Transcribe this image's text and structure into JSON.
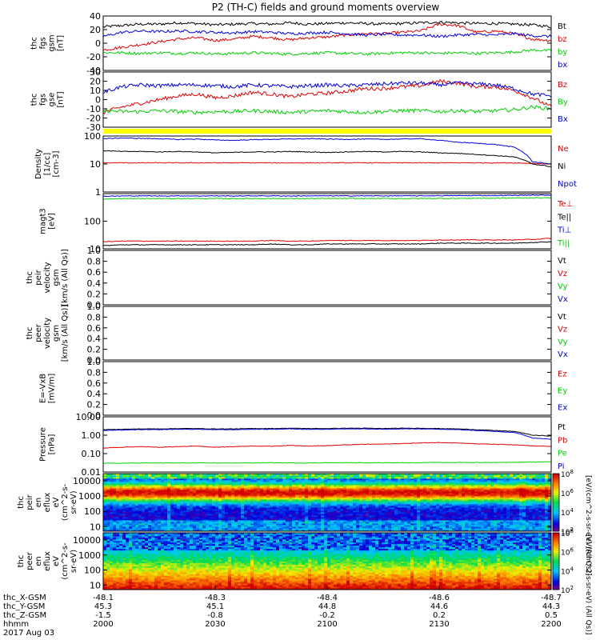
{
  "title": "P2 (TH-C) fields and ground moments overview",
  "colors": {
    "black": "#000000",
    "red": "#e00000",
    "green": "#00d000",
    "blue": "#0000e0",
    "yellow": "#ffff00",
    "bg": "#ffffff"
  },
  "chart_data": [
    {
      "type": "line",
      "name": "fgs_gsm",
      "ylabel": [
        "thc",
        "fgs",
        "gsm",
        "[nT]"
      ],
      "ylim": [
        -40,
        40
      ],
      "yticks": [
        -40,
        -20,
        0,
        20,
        40
      ],
      "yticklabels": [
        "-40",
        "-20",
        "0",
        "20",
        "40"
      ],
      "series": [
        {
          "name": "Bt",
          "color": "#000000",
          "values": [
            24,
            26,
            28,
            28,
            30,
            29,
            27,
            28,
            29,
            28,
            30,
            28,
            29,
            30,
            29,
            28,
            29,
            30,
            31,
            30,
            29,
            29,
            28,
            27,
            24
          ]
        },
        {
          "name": "bz",
          "color": "#e00000",
          "values": [
            -10,
            -6,
            -2,
            2,
            6,
            8,
            4,
            6,
            10,
            8,
            5,
            8,
            9,
            12,
            14,
            14,
            16,
            18,
            28,
            26,
            16,
            18,
            14,
            6,
            4
          ]
        },
        {
          "name": "by",
          "color": "#00d000",
          "values": [
            -14,
            -14,
            -15,
            -14,
            -15,
            -14,
            -16,
            -15,
            -14,
            -15,
            -16,
            -15,
            -14,
            -15,
            -16,
            -15,
            -14,
            -14,
            -15,
            -14,
            -15,
            -14,
            -13,
            -10,
            -11
          ]
        },
        {
          "name": "bx",
          "color": "#0000e0",
          "values": [
            10,
            16,
            18,
            17,
            18,
            17,
            16,
            15,
            17,
            16,
            14,
            15,
            16,
            14,
            12,
            13,
            12,
            12,
            10,
            12,
            13,
            12,
            14,
            11,
            10
          ]
        }
      ]
    },
    {
      "type": "line",
      "name": "fgs_gse",
      "ylabel": [
        "thc",
        "fgs",
        "gse",
        "[nT]"
      ],
      "ylim": [
        -30,
        30
      ],
      "yticks": [
        -30,
        -20,
        -10,
        0,
        10,
        20,
        30
      ],
      "yticklabels": [
        "-30",
        "-20",
        "-10",
        "0",
        "10",
        "20",
        "30"
      ],
      "series": [
        {
          "name": "Bz",
          "color": "#e00000",
          "values": [
            -14,
            -8,
            -4,
            0,
            4,
            6,
            2,
            4,
            8,
            6,
            3,
            6,
            7,
            9,
            12,
            12,
            14,
            15,
            20,
            18,
            14,
            14,
            10,
            2,
            -8
          ]
        },
        {
          "name": "By",
          "color": "#00d000",
          "values": [
            -12,
            -13,
            -13,
            -12,
            -13,
            -14,
            -13,
            -13,
            -12,
            -13,
            -14,
            -13,
            -12,
            -13,
            -14,
            -13,
            -12,
            -12,
            -13,
            -12,
            -13,
            -12,
            -11,
            -8,
            -10
          ]
        },
        {
          "name": "Bx",
          "color": "#0000e0",
          "values": [
            8,
            14,
            16,
            15,
            16,
            16,
            15,
            14,
            16,
            15,
            14,
            15,
            16,
            15,
            16,
            17,
            18,
            18,
            16,
            18,
            17,
            16,
            12,
            6,
            4
          ]
        }
      ]
    },
    {
      "type": "line",
      "name": "density",
      "ylabel": [
        "Density",
        "[1/cc]",
        "[cm-3]"
      ],
      "scale": "log",
      "ylim": [
        1,
        100
      ],
      "yticks": [
        1,
        10,
        100
      ],
      "yticklabels": [
        "1",
        "10",
        "100"
      ],
      "series": [
        {
          "name": "Ne",
          "color": "#e00000",
          "values": [
            11,
            11,
            11,
            11,
            11,
            11,
            11,
            11,
            11,
            11,
            11,
            11,
            11,
            11,
            11,
            11,
            11,
            11,
            11,
            11,
            11,
            11,
            11,
            10.5,
            10
          ]
        },
        {
          "name": "Ni",
          "color": "#000000",
          "values": [
            30,
            28,
            28,
            27,
            28,
            27,
            25,
            26,
            27,
            27,
            28,
            27,
            26,
            27,
            28,
            27,
            28,
            27,
            25,
            24,
            22,
            20,
            18,
            10,
            8
          ]
        },
        {
          "name": "Npot",
          "color": "#0000e0",
          "values": [
            80,
            85,
            82,
            80,
            75,
            78,
            72,
            70,
            74,
            76,
            78,
            80,
            78,
            76,
            78,
            76,
            78,
            80,
            70,
            60,
            55,
            50,
            40,
            12,
            10
          ]
        }
      ]
    },
    {
      "type": "line",
      "name": "moments_t3",
      "ylabel": [
        "magt3",
        "[eV]"
      ],
      "scale": "log",
      "ylim": [
        10,
        1000
      ],
      "yticks": [
        10,
        100
      ],
      "yticklabels": [
        "10",
        "100"
      ],
      "series": [
        {
          "name": "Te⊥",
          "color": "#e00000",
          "values": [
            18,
            19,
            19,
            19,
            19,
            19,
            19,
            19,
            19,
            20,
            19,
            19,
            20,
            20,
            20,
            20,
            20,
            20,
            21,
            21,
            21,
            21,
            21,
            22,
            24
          ]
        },
        {
          "name": "Te||",
          "color": "#000000",
          "values": [
            13,
            14,
            14,
            14,
            14,
            14,
            14,
            14,
            14,
            15,
            14,
            14,
            15,
            15,
            15,
            15,
            15,
            15,
            16,
            16,
            16,
            16,
            16,
            17,
            18
          ]
        },
        {
          "name": "Ti⊥",
          "color": "#0000e0",
          "values": [
            800,
            820,
            830,
            820,
            830,
            820,
            830,
            820,
            830,
            830,
            820,
            830,
            830,
            830,
            830,
            830,
            830,
            830,
            840,
            840,
            850,
            850,
            860,
            880,
            880
          ]
        },
        {
          "name": "Ti||",
          "color": "#00d000",
          "values": [
            640,
            660,
            660,
            660,
            660,
            660,
            660,
            660,
            660,
            665,
            660,
            660,
            665,
            665,
            665,
            665,
            665,
            665,
            670,
            670,
            680,
            680,
            690,
            700,
            700
          ]
        }
      ]
    },
    {
      "type": "line",
      "name": "peir_velocity",
      "ylabel": [
        "thc",
        "peir",
        "velocity",
        "gsm",
        "[km/s (All Qs)]"
      ],
      "ylim": [
        0,
        1
      ],
      "yticks": [
        0,
        0.2,
        0.4,
        0.6,
        0.8,
        1.0
      ],
      "yticklabels": [
        "0.0",
        "0.2",
        "0.4",
        "0.6",
        "0.8",
        "1.0"
      ],
      "series": [
        {
          "name": "Vt",
          "color": "#000000",
          "values": []
        },
        {
          "name": "Vz",
          "color": "#e00000",
          "values": []
        },
        {
          "name": "Vy",
          "color": "#00d000",
          "values": []
        },
        {
          "name": "Vx",
          "color": "#0000e0",
          "values": []
        }
      ]
    },
    {
      "type": "line",
      "name": "peer_velocity",
      "ylabel": [
        "thc",
        "peer",
        "velocity",
        "gsm",
        "[km/s (All Qs)]"
      ],
      "ylim": [
        0,
        1
      ],
      "yticks": [
        0,
        0.2,
        0.4,
        0.6,
        0.8,
        1.0
      ],
      "yticklabels": [
        "0.0",
        "0.2",
        "0.4",
        "0.6",
        "0.8",
        "1.0"
      ],
      "series": [
        {
          "name": "Vt",
          "color": "#000000",
          "values": []
        },
        {
          "name": "Vz",
          "color": "#e00000",
          "values": []
        },
        {
          "name": "Vy",
          "color": "#00d000",
          "values": []
        },
        {
          "name": "Vx",
          "color": "#0000e0",
          "values": []
        }
      ]
    },
    {
      "type": "line",
      "name": "e_field",
      "ylabel": [
        "E=-VxB",
        "[mV/m]"
      ],
      "ylim": [
        0,
        1
      ],
      "yticks": [
        0,
        0.2,
        0.4,
        0.6,
        0.8,
        1.0
      ],
      "yticklabels": [
        "0.0",
        "0.2",
        "0.4",
        "0.6",
        "0.8",
        "1.0"
      ],
      "series": [
        {
          "name": "Ez",
          "color": "#e00000",
          "values": []
        },
        {
          "name": "Ey",
          "color": "#00d000",
          "values": []
        },
        {
          "name": "Ex",
          "color": "#0000e0",
          "values": []
        }
      ]
    },
    {
      "type": "line",
      "name": "pressure",
      "ylabel": [
        "Pressure",
        "[nPa]"
      ],
      "scale": "log",
      "ylim": [
        0.01,
        10
      ],
      "yticks": [
        0.01,
        0.1,
        1,
        10
      ],
      "yticklabels": [
        "0.01",
        "0.10",
        "1.00",
        "10.00"
      ],
      "series": [
        {
          "name": "Pt",
          "color": "#000000",
          "values": [
            2.0,
            2.1,
            2.2,
            2.2,
            2.3,
            2.3,
            2.2,
            2.2,
            2.3,
            2.3,
            2.4,
            2.3,
            2.3,
            2.4,
            2.4,
            2.3,
            2.4,
            2.4,
            2.3,
            2.2,
            2.0,
            1.8,
            1.6,
            1.0,
            0.9
          ]
        },
        {
          "name": "Pb",
          "color": "#e00000",
          "values": [
            0.2,
            0.22,
            0.24,
            0.22,
            0.24,
            0.26,
            0.22,
            0.24,
            0.26,
            0.25,
            0.28,
            0.26,
            0.27,
            0.3,
            0.32,
            0.33,
            0.35,
            0.38,
            0.4,
            0.38,
            0.34,
            0.32,
            0.3,
            0.26,
            0.25
          ]
        },
        {
          "name": "Pe",
          "color": "#00d000",
          "values": [
            0.03,
            0.03,
            0.031,
            0.031,
            0.031,
            0.031,
            0.031,
            0.031,
            0.031,
            0.032,
            0.031,
            0.031,
            0.032,
            0.032,
            0.032,
            0.032,
            0.032,
            0.032,
            0.033,
            0.033,
            0.033,
            0.033,
            0.034,
            0.035,
            0.036
          ]
        },
        {
          "name": "Pi",
          "color": "#0000e0",
          "values": [
            1.8,
            1.9,
            2.0,
            2.0,
            2.1,
            2.1,
            2.0,
            2.0,
            2.1,
            2.1,
            2.2,
            2.1,
            2.1,
            2.2,
            2.2,
            2.1,
            2.2,
            2.2,
            2.1,
            2.0,
            1.8,
            1.6,
            1.4,
            0.7,
            0.6
          ]
        }
      ]
    },
    {
      "type": "heatmap",
      "name": "peir_eflux",
      "ylabel": [
        "thc",
        "peir",
        "en",
        "eflux",
        "eV",
        "(cm^2-s-",
        "sr-eV)"
      ],
      "scale": "log",
      "ylim": [
        5,
        30000
      ],
      "yticks": [
        10,
        100,
        1000,
        10000
      ],
      "yticklabels": [
        "10",
        "100",
        "1000",
        "10000"
      ],
      "colorbar": {
        "label": "[eV/(cm^2-s-sr-eV) (All Qs)]",
        "exp_min": 2,
        "exp_max": 8,
        "ticks": [
          2,
          4,
          6,
          8
        ]
      },
      "description_levels": "high flux 1000-10000 eV, decreasing toward low energy"
    },
    {
      "type": "heatmap",
      "name": "peer_eflux",
      "ylabel": [
        "thc",
        "peer",
        "en",
        "eflux",
        "eV",
        "(cm^2-s-",
        "sr-eV)"
      ],
      "scale": "log",
      "ylim": [
        5,
        30000
      ],
      "yticks": [
        10,
        100,
        1000,
        10000
      ],
      "yticklabels": [
        "10",
        "100",
        "1000",
        "10000"
      ],
      "colorbar": {
        "label": "[eV/(cm^2-s-sr-eV) (All Qs)]",
        "exp_min": 2,
        "exp_max": 8,
        "ticks": [
          2,
          4,
          6,
          8
        ]
      }
    }
  ],
  "x_axis": {
    "rows": [
      {
        "label": "thc_X-GSM",
        "values": [
          "-48.1",
          "-48.3",
          "-48.4",
          "-48.6",
          "-48.7"
        ]
      },
      {
        "label": "thc_Y-GSM",
        "values": [
          "45.3",
          "45.1",
          "44.8",
          "44.6",
          "44.3"
        ]
      },
      {
        "label": "thc_Z-GSM",
        "values": [
          "-1.5",
          "-0.8",
          "-0.2",
          "0.2",
          "0.5"
        ]
      },
      {
        "label": "hhmm",
        "values": [
          "2000",
          "2030",
          "2100",
          "2130",
          "2200"
        ]
      }
    ],
    "date": "2017 Aug 03"
  }
}
